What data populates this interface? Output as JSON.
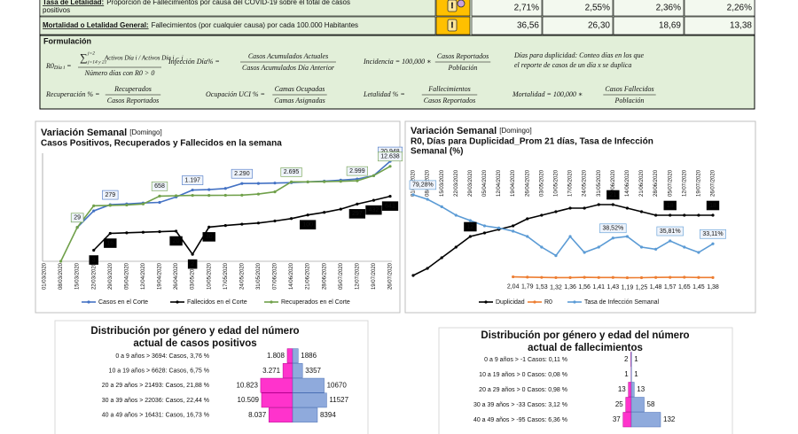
{
  "table": {
    "rows": [
      {
        "term": "Tasa de Letalidad:",
        "text": [
          "Proporción de Fallecimientos por causa del COVID-19 sobre el total de casos",
          "positivos"
        ],
        "values": [
          "2,71%",
          "2,55%",
          "2,36%",
          "2,26%"
        ]
      },
      {
        "term": "Mortalidad o Letalidad General:",
        "text": [
          "Fallecimientos (por cualquier causa) por cada 100.000 Habitantes"
        ],
        "values": [
          "36,56",
          "26,30",
          "18,69",
          "13,38"
        ]
      }
    ]
  },
  "formulas": {
    "title": "Formulación",
    "r0": {
      "lhs": "R0",
      "lhs_sub": "Día i",
      "eq": "=",
      "sum_top": "j=2",
      "sum_bottom": "j=14 y 21",
      "num": "Activos Día i / Activos Día i − j",
      "den": "Número días con R0 > 0"
    },
    "items": [
      {
        "lhs": "Infección Día% =",
        "num": "Casos Acumulados Actuales",
        "den": "Casos  Acumulados Día Anterior"
      },
      {
        "lhs": "Incidencia = 100,000 ∗",
        "num": "Casos Reportados",
        "den": "Población"
      },
      {
        "lhs": "Recuperación % =",
        "num": "Recuperados",
        "den": "Casos Reportados"
      },
      {
        "lhs": "Ocupación UCI % =",
        "num": "Camas Ocupadas",
        "den": "Camas Asignadas"
      },
      {
        "lhs": "Letalidad % =",
        "num": "Fallecimientos",
        "den": "Casos Reportados"
      },
      {
        "lhs": "Mortalidad = 100,000 ∗",
        "num": "Casos Fallecidos",
        "den": "Población"
      }
    ],
    "note": [
      "Días para duplicidad: Conteo días en los que",
      "el reporte de casos de un día x se duplica"
    ]
  },
  "chart_data": [
    {
      "type": "line",
      "title": "Variación Semanal",
      "title_note": "[Domingo]",
      "subtitle": [
        "Casos Positivos, Recuperados y Fallecidos en la semana"
      ],
      "categories": [
        "01/03/2020",
        "08/03/2020",
        "15/03/2020",
        "22/03/2020",
        "29/03/2020",
        "05/04/2020",
        "12/04/2020",
        "19/04/2020",
        "26/04/2020",
        "03/05/2020",
        "10/05/2020",
        "17/05/2020",
        "24/05/2020",
        "31/05/2020",
        "07/06/2020",
        "14/06/2020",
        "21/06/2020",
        "28/06/2020",
        "05/07/2020",
        "12/07/2020",
        "19/07/2020",
        "26/07/2020"
      ],
      "log_scale": true,
      "ylim": [
        1,
        30000
      ],
      "series": [
        {
          "name": "Casos en el Corte",
          "color": "#4472c4",
          "values": [
            null,
            null,
            29,
            150,
            279,
            300,
            330,
            350,
            600,
            1197,
            1250,
            1400,
            2290,
            2300,
            2400,
            2500,
            2700,
            2900,
            3200,
            3600,
            5000,
            20948
          ],
          "value_labels": [
            null,
            null,
            "29",
            null,
            "279",
            null,
            null,
            null,
            null,
            "1.197",
            null,
            null,
            "2.290",
            null,
            null,
            null,
            null,
            null,
            null,
            null,
            null,
            "20.948"
          ]
        },
        {
          "name": "Fallecidos en el Corte",
          "color": "#000000",
          "values": [
            null,
            null,
            null,
            3,
            16,
            17,
            18,
            19,
            20,
            2,
            30,
            35,
            40,
            45,
            55,
            70,
            100,
            130,
            180,
            297,
            432,
            641
          ],
          "value_labels": [
            null,
            null,
            null,
            "3",
            "16",
            null,
            null,
            null,
            "20",
            "2",
            "30",
            null,
            null,
            null,
            null,
            null,
            "100",
            null,
            null,
            "297",
            "432",
            "641"
          ]
        },
        {
          "name": "Recuperados en el Corte",
          "color": "#70a04a",
          "values": [
            null,
            1,
            29,
            250,
            260,
            270,
            300,
            658,
            680,
            700,
            700,
            710,
            720,
            800,
            1000,
            2695,
            2700,
            2750,
            2850,
            2999,
            5000,
            12638
          ],
          "value_labels": [
            null,
            null,
            "29",
            null,
            null,
            null,
            null,
            "658",
            null,
            null,
            null,
            null,
            null,
            null,
            null,
            "2.695",
            null,
            null,
            null,
            "2.999",
            null,
            "12.638"
          ]
        }
      ]
    },
    {
      "type": "line",
      "title": "Variación Semanal",
      "title_note": "[Domingo]",
      "subtitle": [
        "R0, Días para Duplicidad_Prom 21 días, Tasa de Infección",
        "Semanal (%)"
      ],
      "categories": [
        "01/03/2020",
        "08/03/2020",
        "15/03/2020",
        "22/03/2020",
        "29/03/2020",
        "05/04/2020",
        "12/04/2020",
        "19/04/2020",
        "26/04/2020",
        "03/05/2020",
        "10/05/2020",
        "17/05/2020",
        "24/05/2020",
        "31/05/2020",
        "07/06/2020",
        "14/06/2020",
        "21/06/2020",
        "28/06/2020",
        "05/07/2020",
        "12/07/2020",
        "19/07/2020",
        "26/07/2020"
      ],
      "ylim": [
        0,
        30
      ],
      "y2lim": [
        0,
        100
      ],
      "series": [
        {
          "name": "Duplicidad",
          "color": "#000000",
          "values": [
            1,
            3,
            6,
            9,
            12,
            13,
            14,
            15,
            17,
            18,
            19,
            20,
            20,
            21,
            21,
            20,
            19,
            18,
            18,
            18,
            18,
            18
          ],
          "value_labels": [
            null,
            null,
            null,
            null,
            "12",
            null,
            null,
            null,
            null,
            null,
            null,
            null,
            null,
            null,
            "21",
            null,
            null,
            null,
            "18",
            null,
            null,
            "18"
          ]
        },
        {
          "name": "R0",
          "color": "#ed7d31",
          "axis": "y2",
          "values": [
            null,
            null,
            null,
            null,
            null,
            null,
            null,
            2.04,
            1.79,
            1.53,
            1.32,
            1.36,
            1.56,
            1.41,
            1.43,
            1.19,
            1.25,
            1.48,
            1.57,
            1.65,
            1.45,
            1.38
          ],
          "value_labels": [
            null,
            null,
            null,
            null,
            null,
            null,
            null,
            "2,04",
            "1,79",
            "1,53",
            "1,32",
            "1,36",
            "1,56",
            "1,41",
            "1,43",
            "1,19",
            "1,25",
            "1,48",
            "1,57",
            "1,65",
            "1,45",
            "1,38"
          ]
        },
        {
          "name": "Tasa de Infección Semanal",
          "color": "#5b9bd5",
          "axis": "y2",
          "values": [
            79.28,
            75,
            68,
            60,
            55,
            50,
            48,
            45,
            40,
            30,
            22,
            40,
            25,
            30,
            38.52,
            40,
            30,
            28,
            35.81,
            30,
            25,
            33.11
          ],
          "value_labels": [
            "79,28%",
            null,
            null,
            null,
            null,
            null,
            null,
            null,
            null,
            null,
            null,
            null,
            null,
            null,
            "38,52%",
            null,
            null,
            null,
            "35,81%",
            null,
            null,
            "33,11%"
          ]
        }
      ]
    },
    {
      "type": "pyramid",
      "title": [
        "Distribución por género y edad del número",
        "actual de casos positivos"
      ],
      "categories": [
        "0 a 9 años > 3694: Casos, 3,76 %",
        "10 a 19 años > 6628: Casos, 6,75 %",
        "20 a 29 años > 21493: Casos, 21,88 %",
        "30 a 39 años > 22036: Casos, 22,44 %",
        "40 a 49 años > 16431: Casos, 16,73 %"
      ],
      "xlim": [
        0,
        15000
      ],
      "series": [
        {
          "color": "#ff33cc",
          "values": [
            1808,
            3271,
            10823,
            10509,
            8037
          ],
          "value_labels": [
            "1.808",
            "3.271",
            "10.823",
            "10.509",
            "8.037"
          ]
        },
        {
          "color": "#8faadc",
          "values": [
            1886,
            3357,
            10670,
            11527,
            8394
          ]
        }
      ]
    },
    {
      "type": "pyramid",
      "title": [
        "Distribución por género y edad del número",
        "actual de fallecimientos"
      ],
      "categories": [
        "0 a 9 años > -1 Casos: 0,11 %",
        "10 a 19 años > 0 Casos: 0,08 %",
        "20 a 29 años > 0 Casos: 0,98 %",
        "30 a 39 años > -33 Casos: 3,12 %",
        "40 a 49 años > -95 Casos: 6,36 %"
      ],
      "xlim": [
        0,
        200
      ],
      "series": [
        {
          "color": "#ff33cc",
          "values": [
            2,
            1,
            13,
            25,
            37
          ]
        },
        {
          "color": "#8faadc",
          "values": [
            1,
            1,
            13,
            58,
            132
          ]
        }
      ]
    }
  ]
}
